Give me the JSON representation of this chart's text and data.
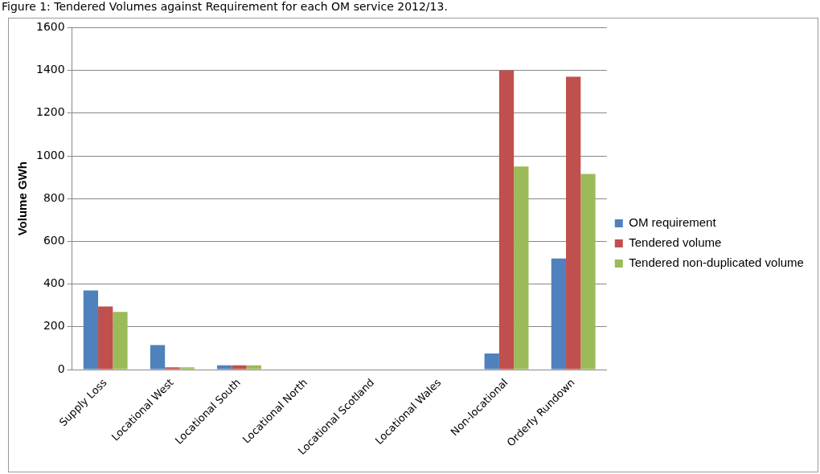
{
  "chart_data": {
    "type": "bar",
    "title": "Figure 1: Tendered Volumes against Requirement for each OM service 2012/13.",
    "ylabel": "Volume GWh",
    "categories": [
      "Supply Loss",
      "Locational West",
      "Locational South",
      "Locational North",
      "Locational Scotland",
      "Locational Wales",
      "Non-locational",
      "Orderly Rundown"
    ],
    "series": [
      {
        "name": "OM requirement",
        "color": "#4f81bd",
        "values": [
          370,
          115,
          20,
          0,
          0,
          0,
          75,
          520
        ]
      },
      {
        "name": "Tendered volume",
        "color": "#c0504d",
        "values": [
          295,
          10,
          20,
          0,
          0,
          0,
          1400,
          1370
        ]
      },
      {
        "name": "Tendered non-duplicated volume",
        "color": "#9bbb59",
        "values": [
          270,
          10,
          20,
          0,
          0,
          0,
          950,
          915
        ]
      }
    ],
    "ylim": [
      0,
      1600
    ],
    "yticks": [
      0,
      200,
      400,
      600,
      800,
      1000,
      1200,
      1400,
      1600
    ],
    "grid": "y",
    "legend": "right"
  }
}
